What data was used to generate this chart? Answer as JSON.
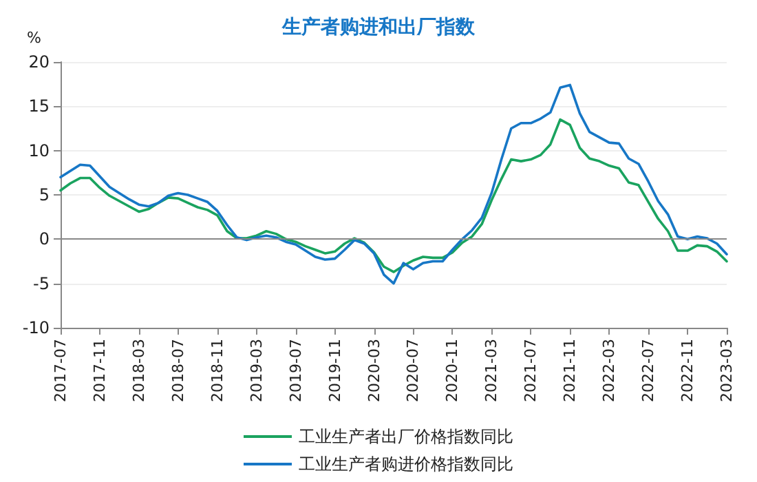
{
  "chart_data": {
    "type": "line",
    "title": "生产者购进和出厂指数",
    "ylabel": "%",
    "categories": [
      "2017-07",
      null,
      null,
      null,
      "2017-11",
      null,
      null,
      null,
      "2018-03",
      null,
      null,
      null,
      "2018-07",
      null,
      null,
      null,
      "2018-11",
      null,
      null,
      null,
      "2019-03",
      null,
      null,
      null,
      "2019-07",
      null,
      null,
      null,
      "2019-11",
      null,
      null,
      null,
      "2020-03",
      null,
      null,
      null,
      "2020-07",
      null,
      null,
      null,
      "2020-11",
      null,
      null,
      null,
      "2021-03",
      null,
      null,
      null,
      "2021-07",
      null,
      null,
      null,
      "2021-11",
      null,
      null,
      null,
      "2022-03",
      null,
      null,
      null,
      "2022-07",
      null,
      null,
      null,
      "2022-11",
      null,
      null,
      null,
      "2023-03"
    ],
    "series": [
      {
        "name": "工业生产者出厂价格指数同比",
        "color": "#1aa35f",
        "values": [
          5.5,
          6.3,
          6.9,
          6.9,
          5.8,
          4.9,
          4.3,
          3.7,
          3.1,
          3.4,
          4.1,
          4.7,
          4.6,
          4.1,
          3.6,
          3.3,
          2.7,
          0.9,
          0.1,
          0.1,
          0.4,
          0.9,
          0.6,
          0.0,
          -0.3,
          -0.8,
          -1.2,
          -1.6,
          -1.4,
          -0.5,
          0.1,
          -0.4,
          -1.5,
          -3.1,
          -3.7,
          -3.0,
          -2.4,
          -2.0,
          -2.1,
          -2.1,
          -1.5,
          -0.4,
          0.3,
          1.7,
          4.4,
          6.8,
          9.0,
          8.8,
          9.0,
          9.5,
          10.7,
          13.5,
          12.9,
          10.3,
          9.1,
          8.8,
          8.3,
          8.0,
          6.4,
          6.1,
          4.2,
          2.3,
          0.9,
          -1.3,
          -1.3,
          -0.7,
          -0.8,
          -1.4,
          -2.5
        ]
      },
      {
        "name": "工业生产者购进价格指数同比",
        "color": "#1777c6",
        "values": [
          7.0,
          7.7,
          8.4,
          8.3,
          7.1,
          5.9,
          5.2,
          4.5,
          3.9,
          3.7,
          4.1,
          4.9,
          5.2,
          5.0,
          4.6,
          4.2,
          3.2,
          1.6,
          0.2,
          -0.1,
          0.2,
          0.4,
          0.2,
          -0.3,
          -0.6,
          -1.3,
          -2.0,
          -2.3,
          -2.2,
          -1.2,
          -0.1,
          -0.5,
          -1.6,
          -4.0,
          -5.0,
          -2.7,
          -3.4,
          -2.7,
          -2.5,
          -2.5,
          -1.2,
          0.0,
          1.0,
          2.4,
          5.2,
          9.0,
          12.5,
          13.1,
          13.1,
          13.6,
          14.3,
          17.1,
          17.4,
          14.2,
          12.1,
          11.5,
          10.9,
          10.8,
          9.1,
          8.5,
          6.5,
          4.3,
          2.8,
          0.3,
          0.0,
          0.3,
          0.1,
          -0.5,
          -1.7
        ]
      }
    ],
    "ylim": [
      -10,
      20
    ],
    "yticks": [
      -10,
      -5,
      0,
      5,
      10,
      15,
      20
    ],
    "grid": "y",
    "legend": "bottom",
    "marker": "none",
    "line_style": "solid"
  }
}
